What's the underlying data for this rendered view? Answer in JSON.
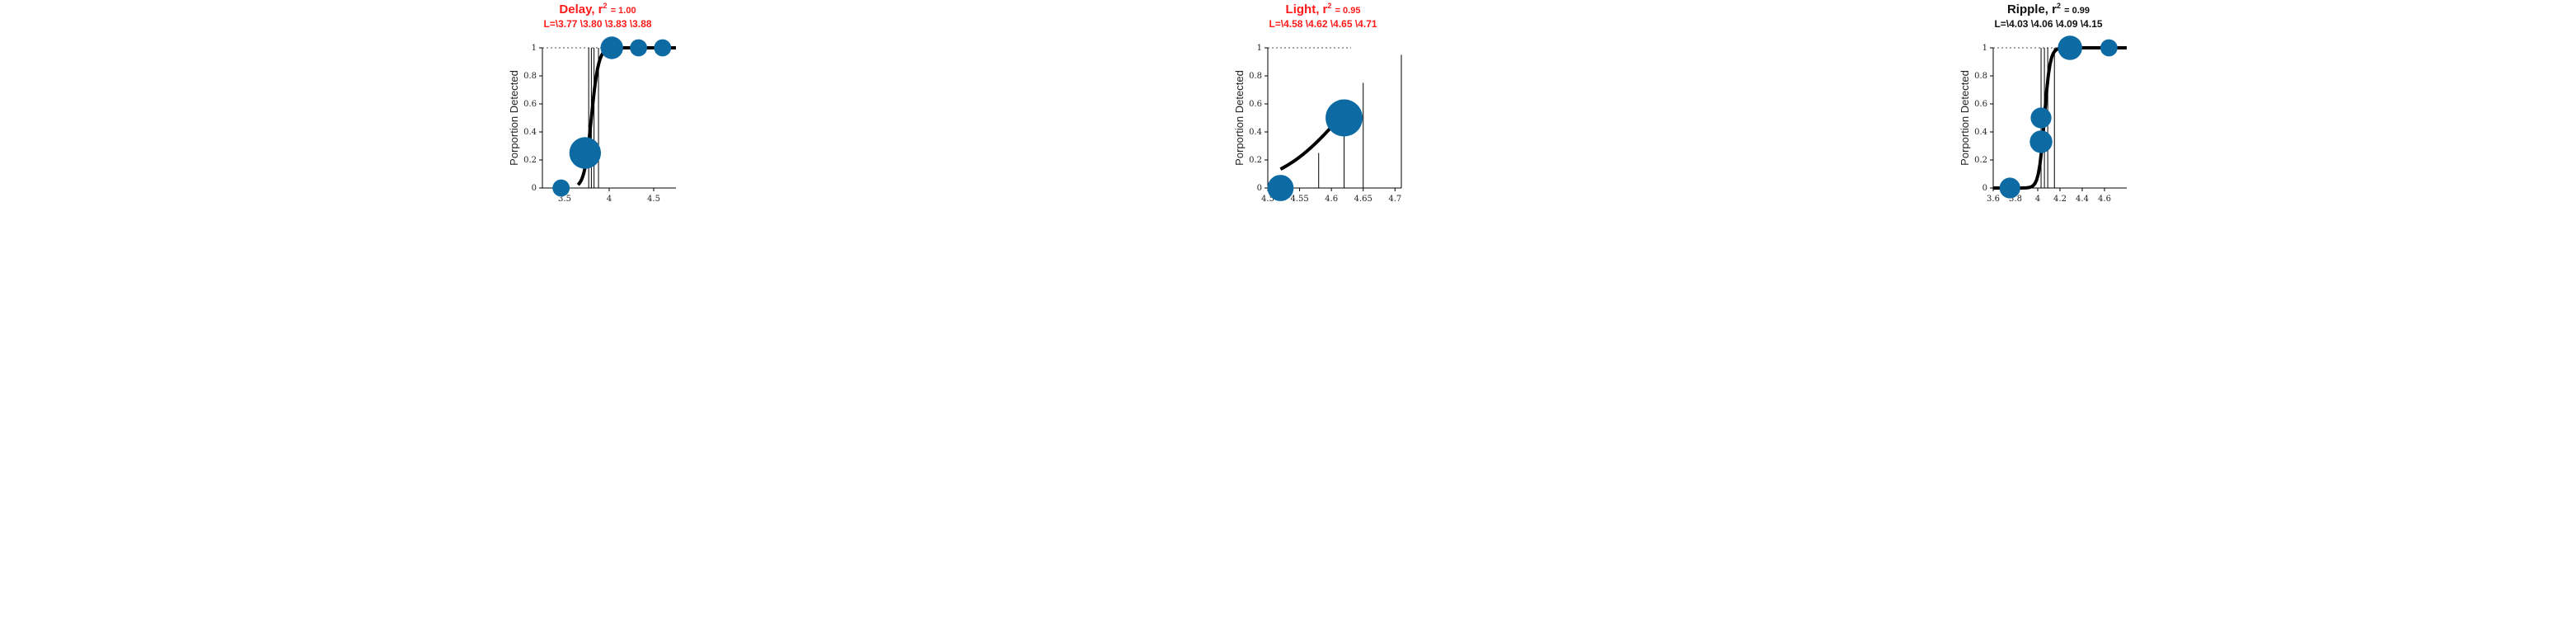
{
  "chart_data": [
    {
      "type": "scatter",
      "title_main": "Delay, r",
      "title_r2": "= 1.00",
      "subtitle": "L=\\3.77 \\3.80 \\3.83 \\3.88",
      "title_color": "#ff1a1a",
      "ylabel": "Porportion Detected",
      "xlim": [
        3.25,
        4.75
      ],
      "ylim": [
        0,
        1
      ],
      "xticks": [
        "3.5",
        "4",
        "4.5"
      ],
      "xtick_values": [
        3.5,
        4.0,
        4.5
      ],
      "yticks": [
        "0",
        "0.2",
        "0.4",
        "0.6",
        "0.8",
        "1"
      ],
      "ytick_values": [
        0,
        0.2,
        0.4,
        0.6,
        0.8,
        1
      ],
      "vlines": [
        3.77,
        3.8,
        3.83,
        3.88
      ],
      "vline_top": 1.0,
      "points": [
        {
          "x": 3.46,
          "y": 0.0,
          "size": 0.2
        },
        {
          "x": 3.73,
          "y": 0.25,
          "size": 0.6
        },
        {
          "x": 4.03,
          "y": 1.0,
          "size": 0.35
        },
        {
          "x": 4.33,
          "y": 1.0,
          "size": 0.2
        },
        {
          "x": 4.6,
          "y": 1.0,
          "size": 0.2
        }
      ],
      "curve": {
        "mid": 3.8,
        "slope": 0.04,
        "x_from": 3.65,
        "x_to": 4.75
      },
      "dotted_reference": 1.0
    },
    {
      "type": "scatter",
      "title_main": "Light, r",
      "title_r2": "= 0.95",
      "subtitle": "L=\\4.58 \\4.62 \\4.65 \\4.71",
      "title_color": "#ff1a1a",
      "ylabel": "Porportion Detected",
      "xlim": [
        4.5,
        4.71
      ],
      "ylim": [
        0,
        1
      ],
      "xticks": [
        "4.5",
        "4.55",
        "4.6",
        "4.65",
        "4.7"
      ],
      "xtick_values": [
        4.5,
        4.55,
        4.6,
        4.65,
        4.7
      ],
      "yticks": [
        "0",
        "0.2",
        "0.4",
        "0.6",
        "0.8",
        "1"
      ],
      "ytick_values": [
        0,
        0.2,
        0.4,
        0.6,
        0.8,
        1
      ],
      "vlines": [
        4.58,
        4.62,
        4.65,
        4.71
      ],
      "vline_tops": [
        0.25,
        0.5,
        0.75,
        0.95
      ],
      "points": [
        {
          "x": 4.52,
          "y": 0.0,
          "size": 0.45
        },
        {
          "x": 4.62,
          "y": 0.5,
          "size": 0.75
        }
      ],
      "curve": {
        "mid": 4.613,
        "slope": 0.05,
        "x_from": 4.52,
        "x_to": 4.62
      },
      "dotted_reference": 1.0
    },
    {
      "type": "scatter",
      "title_main": "Ripple, r",
      "title_r2": "= 0.99",
      "subtitle": "L=\\4.03 \\4.06 \\4.09 \\4.15",
      "title_color": "#111111",
      "ylabel": "Porportion Detected",
      "xlim": [
        3.6,
        4.8
      ],
      "ylim": [
        0,
        1
      ],
      "xticks": [
        "3.6",
        "3.8",
        "4",
        "4.2",
        "4.4",
        "4.6"
      ],
      "xtick_values": [
        3.6,
        3.8,
        4.0,
        4.2,
        4.4,
        4.6
      ],
      "yticks": [
        "0",
        "0.2",
        "0.4",
        "0.6",
        "0.8",
        "1"
      ],
      "ytick_values": [
        0,
        0.2,
        0.4,
        0.6,
        0.8,
        1
      ],
      "vlines": [
        4.03,
        4.06,
        4.09,
        4.15
      ],
      "vline_top": 1.0,
      "points": [
        {
          "x": 3.75,
          "y": 0.0,
          "size": 0.3
        },
        {
          "x": 4.03,
          "y": 0.5,
          "size": 0.3
        },
        {
          "x": 4.03,
          "y": 0.33,
          "size": 0.35
        },
        {
          "x": 4.29,
          "y": 1.0,
          "size": 0.4
        },
        {
          "x": 4.64,
          "y": 1.0,
          "size": 0.2
        }
      ],
      "curve": {
        "mid": 4.06,
        "slope": 0.025,
        "x_from": 3.6,
        "x_to": 4.8
      },
      "dotted_reference": 1.0
    }
  ],
  "colors": {
    "marker": "#0d6aa3",
    "curve": "#000000",
    "axis": "#000000"
  }
}
